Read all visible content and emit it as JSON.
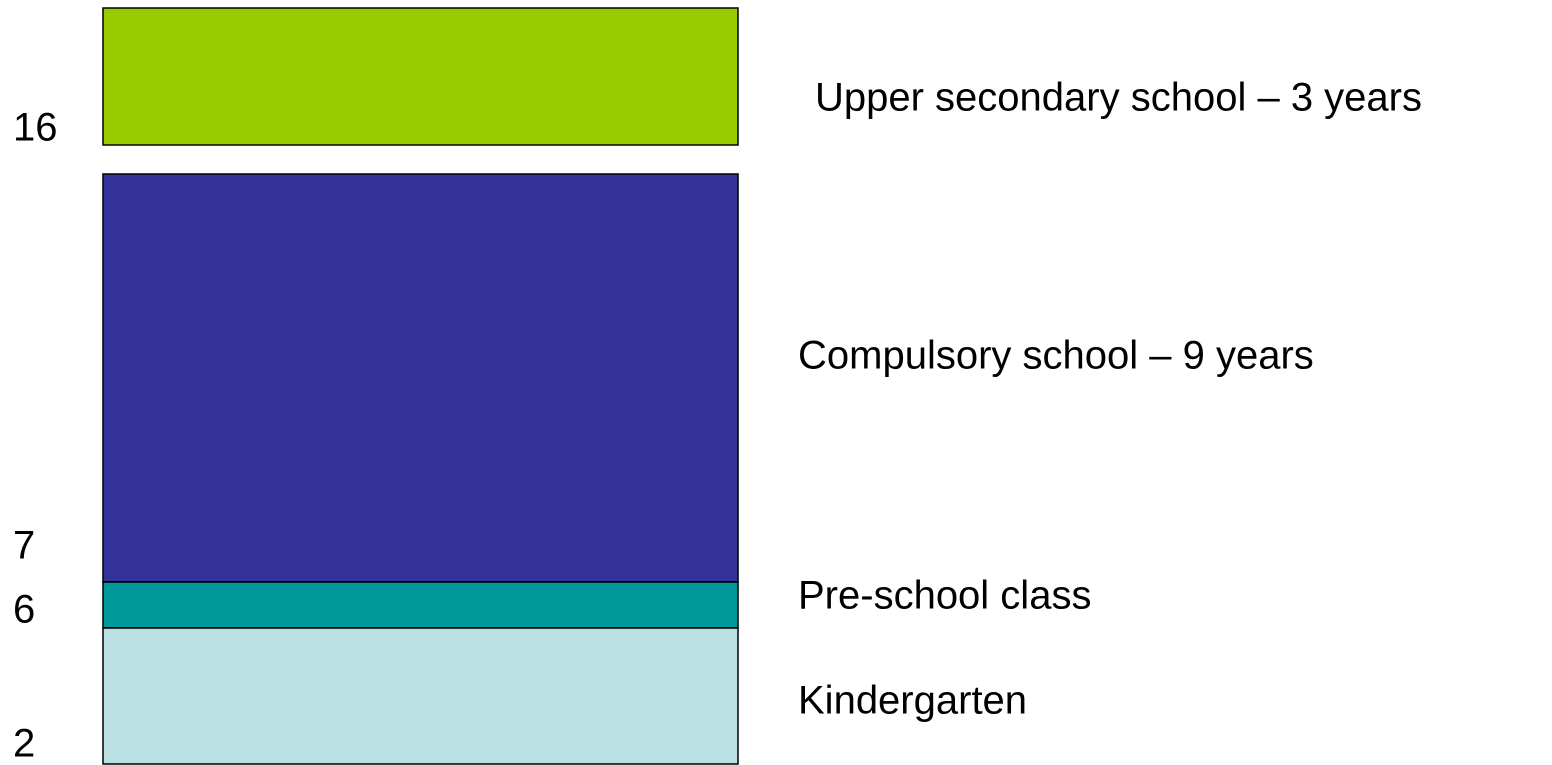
{
  "blocks": [
    {
      "label": "Upper secondary school – 3 years",
      "color": "#99cc00"
    },
    {
      "label": "Compulsory school – 9 years",
      "color": "#333399"
    },
    {
      "label": "Pre-school class",
      "color": "#009999"
    },
    {
      "label": "Kindergarten",
      "color": "#bbe0e3"
    }
  ],
  "ages": [
    "16",
    "7",
    "6",
    "2"
  ]
}
